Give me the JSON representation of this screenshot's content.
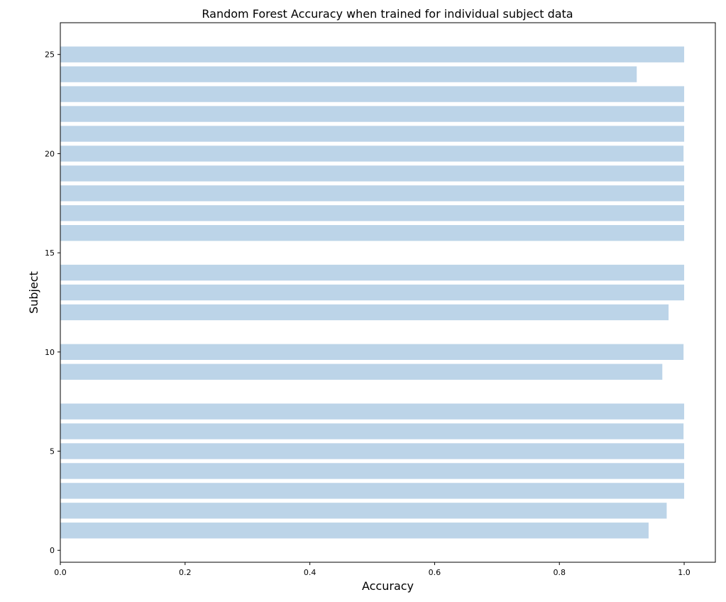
{
  "chart_data": {
    "type": "bar",
    "orientation": "horizontal",
    "title": "Random Forest Accuracy when trained for individual subject data",
    "xlabel": "Accuracy",
    "ylabel": "Subject",
    "xlim": [
      0,
      1.05
    ],
    "ylim": [
      -0.6,
      26.6
    ],
    "xticks": [
      0.0,
      0.2,
      0.4,
      0.6,
      0.8,
      1.0
    ],
    "xtick_labels": [
      "0.0",
      "0.2",
      "0.4",
      "0.6",
      "0.8",
      "1.0"
    ],
    "yticks": [
      0,
      5,
      10,
      15,
      20,
      25
    ],
    "ytick_labels": [
      "0",
      "5",
      "10",
      "15",
      "20",
      "25"
    ],
    "grid": false,
    "bar_color": "#bcd4e8",
    "series": [
      {
        "points": [
          {
            "subject": 1,
            "value": 0.943
          },
          {
            "subject": 2,
            "value": 0.972
          },
          {
            "subject": 3,
            "value": 1.0
          },
          {
            "subject": 4,
            "value": 1.0
          },
          {
            "subject": 5,
            "value": 1.0
          },
          {
            "subject": 6,
            "value": 0.999
          },
          {
            "subject": 7,
            "value": 1.0
          },
          {
            "subject": 9,
            "value": 0.965
          },
          {
            "subject": 10,
            "value": 0.999
          },
          {
            "subject": 12,
            "value": 0.975
          },
          {
            "subject": 13,
            "value": 1.0
          },
          {
            "subject": 14,
            "value": 1.0
          },
          {
            "subject": 16,
            "value": 1.0
          },
          {
            "subject": 17,
            "value": 1.0
          },
          {
            "subject": 18,
            "value": 1.0
          },
          {
            "subject": 19,
            "value": 1.0
          },
          {
            "subject": 20,
            "value": 0.999
          },
          {
            "subject": 21,
            "value": 1.0
          },
          {
            "subject": 22,
            "value": 1.0
          },
          {
            "subject": 23,
            "value": 1.0
          },
          {
            "subject": 24,
            "value": 0.924
          },
          {
            "subject": 25,
            "value": 1.0
          }
        ]
      }
    ]
  }
}
